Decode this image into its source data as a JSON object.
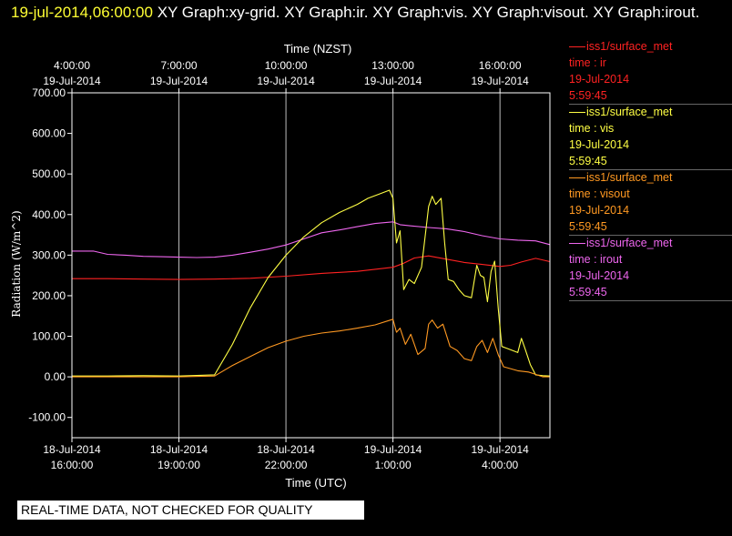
{
  "title": {
    "timestamp": "19-jul-2014,06:00:00",
    "text": " XY Graph:xy-grid.  XY Graph:ir.  XY Graph:vis.  XY Graph:visout.  XY Graph:irout."
  },
  "legend": [
    {
      "source": "iss1/surface_met",
      "var": "time : ir",
      "date": "19-Jul-2014",
      "time": "5:59:45",
      "color": "#ff2222"
    },
    {
      "source": "iss1/surface_met",
      "var": "time : vis",
      "date": "19-Jul-2014",
      "time": "5:59:45",
      "color": "#ffff44"
    },
    {
      "source": "iss1/surface_met",
      "var": "time : visout",
      "date": "19-Jul-2014",
      "time": "5:59:45",
      "color": "#ff9922"
    },
    {
      "source": "iss1/surface_met",
      "var": "time : irout",
      "date": "19-Jul-2014",
      "time": "5:59:45",
      "color": "#ee66ee"
    }
  ],
  "disclaimer": "REAL-TIME DATA, NOT CHECKED FOR QUALITY",
  "chart_data": {
    "type": "line",
    "ylabel": "Radiation (W/m^2)",
    "xlabel": "Time (UTC)",
    "x2label": "Time (NZST)",
    "xlim_hours_utc": [
      0,
      13.4
    ],
    "ylim": [
      -150,
      700
    ],
    "y_ticks": [
      "-100.00",
      "0.00",
      "100.00",
      "200.00",
      "300.00",
      "400.00",
      "500.00",
      "600.00",
      "700.00"
    ],
    "x_ticks": [
      {
        "h": 0,
        "l1": "18-Jul-2014",
        "l2": "16:00:00"
      },
      {
        "h": 3,
        "l1": "18-Jul-2014",
        "l2": "19:00:00"
      },
      {
        "h": 6,
        "l1": "18-Jul-2014",
        "l2": "22:00:00"
      },
      {
        "h": 9,
        "l1": "19-Jul-2014",
        "l2": "1:00:00"
      },
      {
        "h": 12,
        "l1": "19-Jul-2014",
        "l2": "4:00:00"
      }
    ],
    "x2_ticks": [
      {
        "h": 0,
        "l1": "4:00:00",
        "l2": "19-Jul-2014"
      },
      {
        "h": 3,
        "l1": "7:00:00",
        "l2": "19-Jul-2014"
      },
      {
        "h": 6,
        "l1": "10:00:00",
        "l2": "19-Jul-2014"
      },
      {
        "h": 9,
        "l1": "13:00:00",
        "l2": "19-Jul-2014"
      },
      {
        "h": 12,
        "l1": "16:00:00",
        "l2": "19-Jul-2014"
      }
    ],
    "grid": true,
    "series": [
      {
        "name": "iss1/surface_met time : ir",
        "color": "#ff2222",
        "x": [
          0,
          1,
          2,
          3,
          4,
          5,
          6,
          7,
          8,
          9,
          9.3,
          9.6,
          10,
          10.5,
          11,
          11.5,
          12,
          12.3,
          12.6,
          13,
          13.4
        ],
        "y": [
          242,
          242,
          241,
          240,
          241,
          243,
          248,
          255,
          260,
          270,
          280,
          293,
          298,
          290,
          282,
          277,
          272,
          275,
          283,
          292,
          284
        ]
      },
      {
        "name": "iss1/surface_met time : irout",
        "color": "#ee66ee",
        "x": [
          0,
          0.6,
          1,
          1.5,
          2,
          2.5,
          3,
          3.5,
          4,
          4.5,
          5,
          5.5,
          6,
          6.5,
          7,
          7.5,
          8,
          8.5,
          9,
          9.2,
          9.5,
          10,
          10.5,
          11,
          11.5,
          12,
          12.5,
          13,
          13.4
        ],
        "y": [
          310,
          310,
          302,
          300,
          297,
          296,
          295,
          294,
          295,
          300,
          307,
          315,
          325,
          340,
          355,
          362,
          370,
          378,
          382,
          375,
          372,
          368,
          365,
          358,
          348,
          340,
          337,
          335,
          326
        ]
      },
      {
        "name": "iss1/surface_met time : vis",
        "color": "#ffff44",
        "x": [
          0,
          1,
          2,
          3,
          4,
          4.5,
          5,
          5.5,
          6,
          6.5,
          7,
          7.5,
          8,
          8.3,
          8.6,
          8.9,
          9,
          9.1,
          9.2,
          9.3,
          9.45,
          9.6,
          9.8,
          10,
          10.1,
          10.2,
          10.35,
          10.45,
          10.55,
          10.7,
          10.85,
          11,
          11.2,
          11.35,
          11.45,
          11.55,
          11.65,
          11.75,
          11.85,
          11.95,
          12.05,
          12.2,
          12.35,
          12.5,
          12.6,
          12.7,
          12.85,
          13,
          13.2,
          13.4
        ],
        "y": [
          2,
          2,
          3,
          2,
          5,
          80,
          170,
          245,
          300,
          345,
          380,
          405,
          425,
          440,
          450,
          460,
          440,
          330,
          360,
          215,
          240,
          230,
          270,
          420,
          445,
          425,
          440,
          330,
          240,
          235,
          215,
          200,
          195,
          275,
          250,
          245,
          185,
          260,
          285,
          170,
          75,
          70,
          65,
          60,
          95,
          70,
          30,
          5,
          3,
          2
        ]
      },
      {
        "name": "iss1/surface_met time : visout",
        "color": "#ff9922",
        "x": [
          0,
          1,
          2,
          3,
          4,
          4.5,
          5,
          5.5,
          6,
          6.5,
          7,
          7.5,
          8,
          8.5,
          9,
          9.1,
          9.2,
          9.35,
          9.5,
          9.7,
          9.9,
          10,
          10.1,
          10.25,
          10.4,
          10.6,
          10.8,
          11,
          11.2,
          11.35,
          11.5,
          11.65,
          11.8,
          11.95,
          12.1,
          12.5,
          12.8,
          13,
          13.2,
          13.4
        ],
        "y": [
          0,
          0,
          0,
          0,
          2,
          28,
          50,
          72,
          88,
          100,
          108,
          113,
          120,
          128,
          142,
          110,
          120,
          80,
          105,
          55,
          70,
          130,
          140,
          120,
          130,
          75,
          65,
          45,
          40,
          75,
          90,
          60,
          95,
          55,
          25,
          15,
          12,
          6,
          0,
          0
        ]
      }
    ]
  }
}
